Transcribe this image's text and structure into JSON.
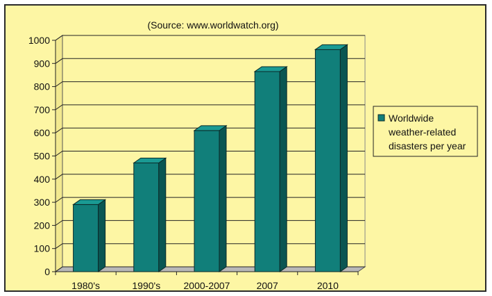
{
  "chart_data": {
    "type": "bar",
    "title": "",
    "subtitle": "(Source: www.worldwatch.org)",
    "categories": [
      "1980's",
      "1990's",
      "2000-2007",
      "2007",
      "2010"
    ],
    "series": [
      {
        "name": "Worldwide weather-related disasters per year",
        "legend_lines": [
          "Worldwide",
          "weather-related",
          "disasters per year"
        ],
        "values": [
          290,
          470,
          610,
          865,
          960
        ],
        "color": "#117f7a"
      }
    ],
    "ylim": [
      0,
      1000
    ],
    "yticks": [
      0,
      100,
      200,
      300,
      400,
      500,
      600,
      700,
      800,
      900,
      1000
    ],
    "xlabel": "",
    "ylabel": "",
    "grid": true,
    "legend_position": "right",
    "style": "3d-columns",
    "background_color": "#fdf6a4"
  }
}
